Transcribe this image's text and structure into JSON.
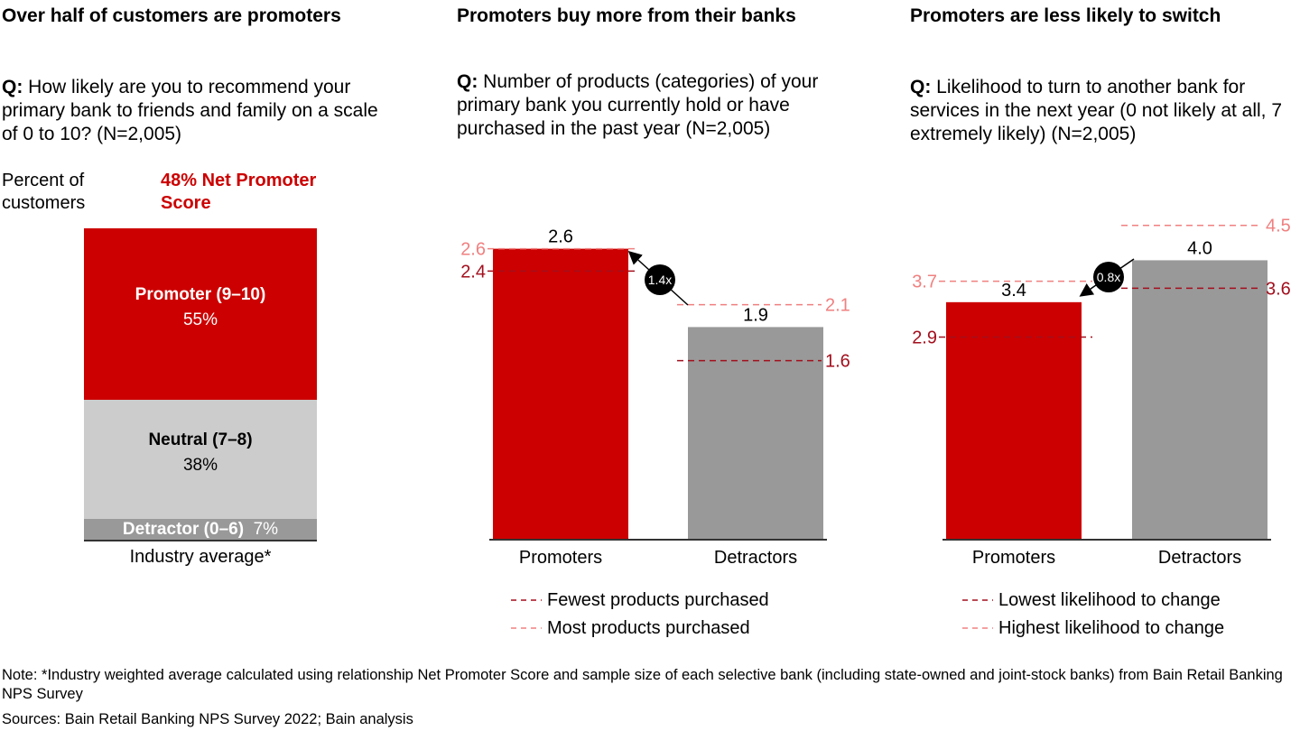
{
  "panels": {
    "p1": {
      "title": "Over half of customers are promoters",
      "q_prefix": "Q:",
      "question": "How likely are you to recommend your primary bank to friends and family on a scale of 0 to 10? (N=2,005)",
      "ylabel": "Percent of customers",
      "nps_label": "48% Net Promoter Score"
    },
    "p2": {
      "title": "Promoters buy more from their banks",
      "q_prefix": "Q:",
      "question": "Number of products (categories) of your primary bank you currently hold or have purchased in the past year (N=2,005)"
    },
    "p3": {
      "title": "Promoters are less likely to switch",
      "q_prefix": "Q:",
      "question": "Likelihood to turn to another bank for services in the next year (0 not likely at all, 7 extremely likely) (N=2,005)"
    }
  },
  "footer": {
    "note": "Note: *Industry weighted average calculated using relationship Net Promoter Score and sample size of each selective bank (including state-owned and joint-stock banks) from Bain Retail Banking NPS Survey",
    "sources": "Sources: Bain Retail Banking NPS Survey 2022; Bain analysis"
  },
  "chart_data": [
    {
      "type": "bar",
      "stacked": true,
      "categories": [
        "Industry average*"
      ],
      "series": [
        {
          "name": "Promoter (9–10)",
          "values": [
            55
          ],
          "label": "55%",
          "color": "#cc0000"
        },
        {
          "name": "Neutral (7–8)",
          "values": [
            38
          ],
          "label": "38%",
          "color": "#cccccc"
        },
        {
          "name": "Detractor (0–6)",
          "values": [
            7
          ],
          "label": "7%",
          "color": "#999999"
        }
      ]
    },
    {
      "type": "bar",
      "categories": [
        "Promoters",
        "Detractors"
      ],
      "values": [
        2.6,
        1.9
      ],
      "value_labels": [
        "2.6",
        "1.9"
      ],
      "colors": [
        "#cc0000",
        "#999999"
      ],
      "ratio_label": "1.4x",
      "ranges": [
        {
          "min": 2.4,
          "max": 2.6,
          "min_label": "2.4",
          "max_label": "2.6"
        },
        {
          "min": 1.6,
          "max": 2.1,
          "min_label": "1.6",
          "max_label": "2.1"
        }
      ],
      "legend": [
        {
          "label": "Fewest products purchased",
          "color": "#a30f1d"
        },
        {
          "label": "Most products purchased",
          "color": "#f08080"
        }
      ],
      "ylim": [
        0,
        2.8
      ]
    },
    {
      "type": "bar",
      "categories": [
        "Promoters",
        "Detractors"
      ],
      "values": [
        3.4,
        4.0
      ],
      "value_labels": [
        "3.4",
        "4.0"
      ],
      "colors": [
        "#cc0000",
        "#999999"
      ],
      "ratio_label": "0.8x",
      "ranges": [
        {
          "min": 2.9,
          "max": 3.7,
          "min_label": "2.9",
          "max_label": "3.7"
        },
        {
          "min": 3.6,
          "max": 4.5,
          "min_label": "3.6",
          "max_label": "4.5"
        }
      ],
      "legend": [
        {
          "label": "Lowest likelihood to change",
          "color": "#a30f1d"
        },
        {
          "label": "Highest likelihood to change",
          "color": "#f08080"
        }
      ],
      "ylim": [
        0,
        4.9
      ]
    }
  ]
}
